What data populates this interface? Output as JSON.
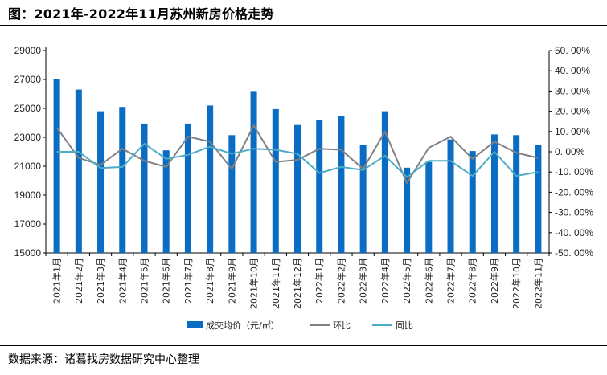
{
  "header": {
    "title": "图：2021年-2022年11月苏州新房价格走势"
  },
  "footer": {
    "source": "数据来源：诸葛找房数据研究中心整理"
  },
  "colors": {
    "bar": "#0a6cc2",
    "mom": "#808080",
    "yoy": "#4bacc6"
  },
  "chart_data": {
    "type": "bar",
    "categories": [
      "2021年1月",
      "2021年2月",
      "2021年3月",
      "2021年4月",
      "2021年5月",
      "2021年6月",
      "2021年7月",
      "2021年8月",
      "2021年9月",
      "2021年10月",
      "2021年11月",
      "2021年12月",
      "2022年1月",
      "2022年2月",
      "2022年3月",
      "2022年4月",
      "2022年5月",
      "2022年6月",
      "2022年7月",
      "2022年8月",
      "2022年9月",
      "2022年10月",
      "2022年11月"
    ],
    "series": [
      {
        "name": "成交均价（元/㎡）",
        "type": "bar",
        "axis": "left",
        "values": [
          27000,
          26300,
          24800,
          25100,
          23950,
          22100,
          23950,
          25200,
          23150,
          26200,
          24950,
          23850,
          24200,
          24450,
          22450,
          24800,
          20900,
          21300,
          22850,
          22050,
          23200,
          23150,
          22500
        ]
      },
      {
        "name": "环比",
        "type": "line",
        "axis": "right",
        "values": [
          12.0,
          -3.0,
          -6.5,
          1.5,
          -4.5,
          -7.5,
          7.5,
          5.0,
          -8.5,
          13.0,
          -5.0,
          -4.0,
          1.5,
          1.0,
          -8.5,
          10.0,
          -15.5,
          2.0,
          7.5,
          -3.5,
          5.0,
          -0.5,
          -3.0
        ]
      },
      {
        "name": "同比",
        "type": "line",
        "axis": "right",
        "values": [
          0.0,
          0.0,
          -8.0,
          -7.5,
          4.0,
          -3.5,
          -1.5,
          2.5,
          -1.0,
          1.5,
          1.0,
          -1.0,
          -10.5,
          -7.5,
          -9.0,
          -2.0,
          -12.5,
          -4.5,
          -4.5,
          -12.0,
          0.0,
          -12.0,
          -10.0
        ]
      }
    ],
    "y_left": {
      "ylim": [
        15000,
        29000
      ],
      "ticks": [
        "15000",
        "17000",
        "19000",
        "21000",
        "23000",
        "25000",
        "27000",
        "29000"
      ]
    },
    "y_right": {
      "ylim": [
        -50,
        50
      ],
      "ticks": [
        "-50. 00%",
        "-40. 00%",
        "-30. 00%",
        "-20. 00%",
        "-10. 00%",
        "0. 00%",
        "10. 00%",
        "20. 00%",
        "30. 00%",
        "40. 00%",
        "50. 00%"
      ]
    },
    "grid": false,
    "legend_position": "bottom"
  }
}
